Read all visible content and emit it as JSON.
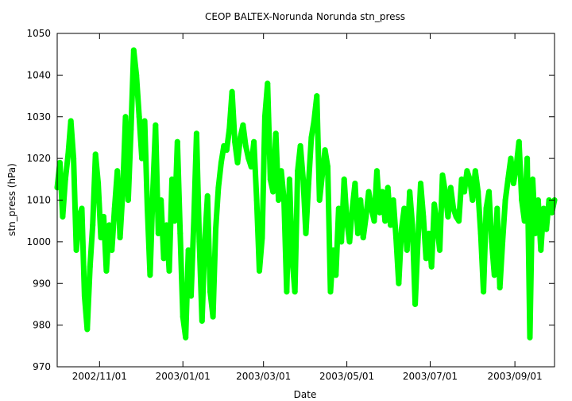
{
  "chart_data": {
    "type": "line",
    "title": "CEOP BALTEX-Norunda Norunda  stn_press",
    "xlabel": "Date",
    "ylabel": "stn_press (hPa)",
    "ylim": [
      970,
      1050
    ],
    "xlim": [
      "2002-10-01",
      "2003-09-30"
    ],
    "y_ticks": [
      970,
      980,
      990,
      1000,
      1010,
      1020,
      1030,
      1040,
      1050
    ],
    "x_ticks": [
      {
        "date": "2002-11-01",
        "label": "2002/11/01"
      },
      {
        "date": "2003-01-01",
        "label": "2003/01/01"
      },
      {
        "date": "2003-03-01",
        "label": "2003/03/01"
      },
      {
        "date": "2003-05-01",
        "label": "2003/05/01"
      },
      {
        "date": "2003-07-01",
        "label": "2003/07/01"
      },
      {
        "date": "2003-09-01",
        "label": "2003/09/01"
      }
    ],
    "grid": false,
    "series_color": "#00ff00",
    "series": [
      {
        "values": [
          [
            "2002-10-01",
            1013
          ],
          [
            "2002-10-03",
            1019
          ],
          [
            "2002-10-05",
            1006
          ],
          [
            "2002-10-07",
            1015
          ],
          [
            "2002-10-09",
            1021
          ],
          [
            "2002-10-11",
            1029
          ],
          [
            "2002-10-13",
            1020
          ],
          [
            "2002-10-15",
            998
          ],
          [
            "2002-10-17",
            1006
          ],
          [
            "2002-10-19",
            1008
          ],
          [
            "2002-10-21",
            987
          ],
          [
            "2002-10-23",
            979
          ],
          [
            "2002-10-25",
            994
          ],
          [
            "2002-10-27",
            1004
          ],
          [
            "2002-10-29",
            1021
          ],
          [
            "2002-10-31",
            1014
          ],
          [
            "2002-11-02",
            1001
          ],
          [
            "2002-11-04",
            1006
          ],
          [
            "2002-11-06",
            993
          ],
          [
            "2002-11-08",
            1004
          ],
          [
            "2002-11-10",
            998
          ],
          [
            "2002-11-12",
            1008
          ],
          [
            "2002-11-14",
            1017
          ],
          [
            "2002-11-16",
            1001
          ],
          [
            "2002-11-18",
            1012
          ],
          [
            "2002-11-20",
            1030
          ],
          [
            "2002-11-22",
            1010
          ],
          [
            "2002-11-24",
            1027
          ],
          [
            "2002-11-26",
            1046
          ],
          [
            "2002-11-28",
            1040
          ],
          [
            "2002-11-30",
            1030
          ],
          [
            "2002-12-02",
            1020
          ],
          [
            "2002-12-04",
            1029
          ],
          [
            "2002-12-06",
            1008
          ],
          [
            "2002-12-08",
            992
          ],
          [
            "2002-12-10",
            1012
          ],
          [
            "2002-12-12",
            1028
          ],
          [
            "2002-12-14",
            1002
          ],
          [
            "2002-12-16",
            1010
          ],
          [
            "2002-12-18",
            996
          ],
          [
            "2002-12-20",
            1004
          ],
          [
            "2002-12-22",
            993
          ],
          [
            "2002-12-24",
            1015
          ],
          [
            "2002-12-26",
            1005
          ],
          [
            "2002-12-28",
            1024
          ],
          [
            "2002-12-30",
            1002
          ],
          [
            "2003-01-01",
            982
          ],
          [
            "2003-01-03",
            977
          ],
          [
            "2003-01-05",
            998
          ],
          [
            "2003-01-07",
            987
          ],
          [
            "2003-01-09",
            1005
          ],
          [
            "2003-01-11",
            1026
          ],
          [
            "2003-01-13",
            1000
          ],
          [
            "2003-01-15",
            981
          ],
          [
            "2003-01-17",
            1000
          ],
          [
            "2003-01-19",
            1011
          ],
          [
            "2003-01-21",
            988
          ],
          [
            "2003-01-23",
            982
          ],
          [
            "2003-01-25",
            1003
          ],
          [
            "2003-01-27",
            1013
          ],
          [
            "2003-01-29",
            1019
          ],
          [
            "2003-01-31",
            1023
          ],
          [
            "2003-02-02",
            1022
          ],
          [
            "2003-02-04",
            1027
          ],
          [
            "2003-02-06",
            1036
          ],
          [
            "2003-02-08",
            1024
          ],
          [
            "2003-02-10",
            1019
          ],
          [
            "2003-02-12",
            1025
          ],
          [
            "2003-02-14",
            1028
          ],
          [
            "2003-02-16",
            1023
          ],
          [
            "2003-02-18",
            1020
          ],
          [
            "2003-02-20",
            1018
          ],
          [
            "2003-02-22",
            1024
          ],
          [
            "2003-02-24",
            1010
          ],
          [
            "2003-02-26",
            993
          ],
          [
            "2003-02-28",
            1001
          ],
          [
            "2003-03-02",
            1030
          ],
          [
            "2003-03-04",
            1038
          ],
          [
            "2003-03-06",
            1015
          ],
          [
            "2003-03-08",
            1012
          ],
          [
            "2003-03-10",
            1026
          ],
          [
            "2003-03-12",
            1010
          ],
          [
            "2003-03-14",
            1017
          ],
          [
            "2003-03-16",
            1010
          ],
          [
            "2003-03-18",
            988
          ],
          [
            "2003-03-20",
            1015
          ],
          [
            "2003-03-22",
            996
          ],
          [
            "2003-03-24",
            988
          ],
          [
            "2003-03-26",
            1017
          ],
          [
            "2003-03-28",
            1023
          ],
          [
            "2003-03-30",
            1015
          ],
          [
            "2003-04-01",
            1002
          ],
          [
            "2003-04-03",
            1014
          ],
          [
            "2003-04-05",
            1025
          ],
          [
            "2003-04-07",
            1029
          ],
          [
            "2003-04-09",
            1035
          ],
          [
            "2003-04-11",
            1010
          ],
          [
            "2003-04-13",
            1016
          ],
          [
            "2003-04-15",
            1022
          ],
          [
            "2003-04-17",
            1018
          ],
          [
            "2003-04-19",
            988
          ],
          [
            "2003-04-21",
            998
          ],
          [
            "2003-04-23",
            992
          ],
          [
            "2003-04-25",
            1008
          ],
          [
            "2003-04-27",
            1000
          ],
          [
            "2003-04-29",
            1015
          ],
          [
            "2003-05-01",
            1005
          ],
          [
            "2003-05-03",
            1000
          ],
          [
            "2003-05-05",
            1008
          ],
          [
            "2003-05-07",
            1014
          ],
          [
            "2003-05-09",
            1002
          ],
          [
            "2003-05-11",
            1010
          ],
          [
            "2003-05-13",
            1001
          ],
          [
            "2003-05-15",
            1006
          ],
          [
            "2003-05-17",
            1012
          ],
          [
            "2003-05-19",
            1008
          ],
          [
            "2003-05-21",
            1005
          ],
          [
            "2003-05-23",
            1017
          ],
          [
            "2003-05-25",
            1007
          ],
          [
            "2003-05-27",
            1012
          ],
          [
            "2003-05-29",
            1005
          ],
          [
            "2003-05-31",
            1013
          ],
          [
            "2003-06-02",
            1004
          ],
          [
            "2003-06-04",
            1010
          ],
          [
            "2003-06-06",
            1001
          ],
          [
            "2003-06-08",
            990
          ],
          [
            "2003-06-10",
            1003
          ],
          [
            "2003-06-12",
            1008
          ],
          [
            "2003-06-14",
            998
          ],
          [
            "2003-06-16",
            1012
          ],
          [
            "2003-06-18",
            1004
          ],
          [
            "2003-06-20",
            985
          ],
          [
            "2003-06-22",
            1000
          ],
          [
            "2003-06-24",
            1014
          ],
          [
            "2003-06-26",
            1006
          ],
          [
            "2003-06-28",
            996
          ],
          [
            "2003-06-30",
            1002
          ],
          [
            "2003-07-02",
            994
          ],
          [
            "2003-07-04",
            1009
          ],
          [
            "2003-07-06",
            1004
          ],
          [
            "2003-07-08",
            998
          ],
          [
            "2003-07-10",
            1016
          ],
          [
            "2003-07-12",
            1012
          ],
          [
            "2003-07-14",
            1006
          ],
          [
            "2003-07-16",
            1013
          ],
          [
            "2003-07-18",
            1008
          ],
          [
            "2003-07-20",
            1006
          ],
          [
            "2003-07-22",
            1005
          ],
          [
            "2003-07-24",
            1015
          ],
          [
            "2003-07-26",
            1012
          ],
          [
            "2003-07-28",
            1017
          ],
          [
            "2003-07-30",
            1015
          ],
          [
            "2003-08-01",
            1010
          ],
          [
            "2003-08-03",
            1017
          ],
          [
            "2003-08-05",
            1012
          ],
          [
            "2003-08-07",
            1002
          ],
          [
            "2003-08-09",
            988
          ],
          [
            "2003-08-11",
            1008
          ],
          [
            "2003-08-13",
            1012
          ],
          [
            "2003-08-15",
            1000
          ],
          [
            "2003-08-17",
            992
          ],
          [
            "2003-08-19",
            1008
          ],
          [
            "2003-08-21",
            989
          ],
          [
            "2003-08-23",
            1000
          ],
          [
            "2003-08-25",
            1010
          ],
          [
            "2003-08-27",
            1015
          ],
          [
            "2003-08-29",
            1020
          ],
          [
            "2003-08-31",
            1014
          ],
          [
            "2003-09-02",
            1018
          ],
          [
            "2003-09-04",
            1024
          ],
          [
            "2003-09-06",
            1010
          ],
          [
            "2003-09-08",
            1005
          ],
          [
            "2003-09-10",
            1020
          ],
          [
            "2003-09-12",
            977
          ],
          [
            "2003-09-14",
            1015
          ],
          [
            "2003-09-16",
            1002
          ],
          [
            "2003-09-18",
            1010
          ],
          [
            "2003-09-20",
            998
          ],
          [
            "2003-09-22",
            1008
          ],
          [
            "2003-09-24",
            1003
          ],
          [
            "2003-09-26",
            1010
          ],
          [
            "2003-09-28",
            1007
          ],
          [
            "2003-09-30",
            1010
          ]
        ]
      }
    ]
  }
}
